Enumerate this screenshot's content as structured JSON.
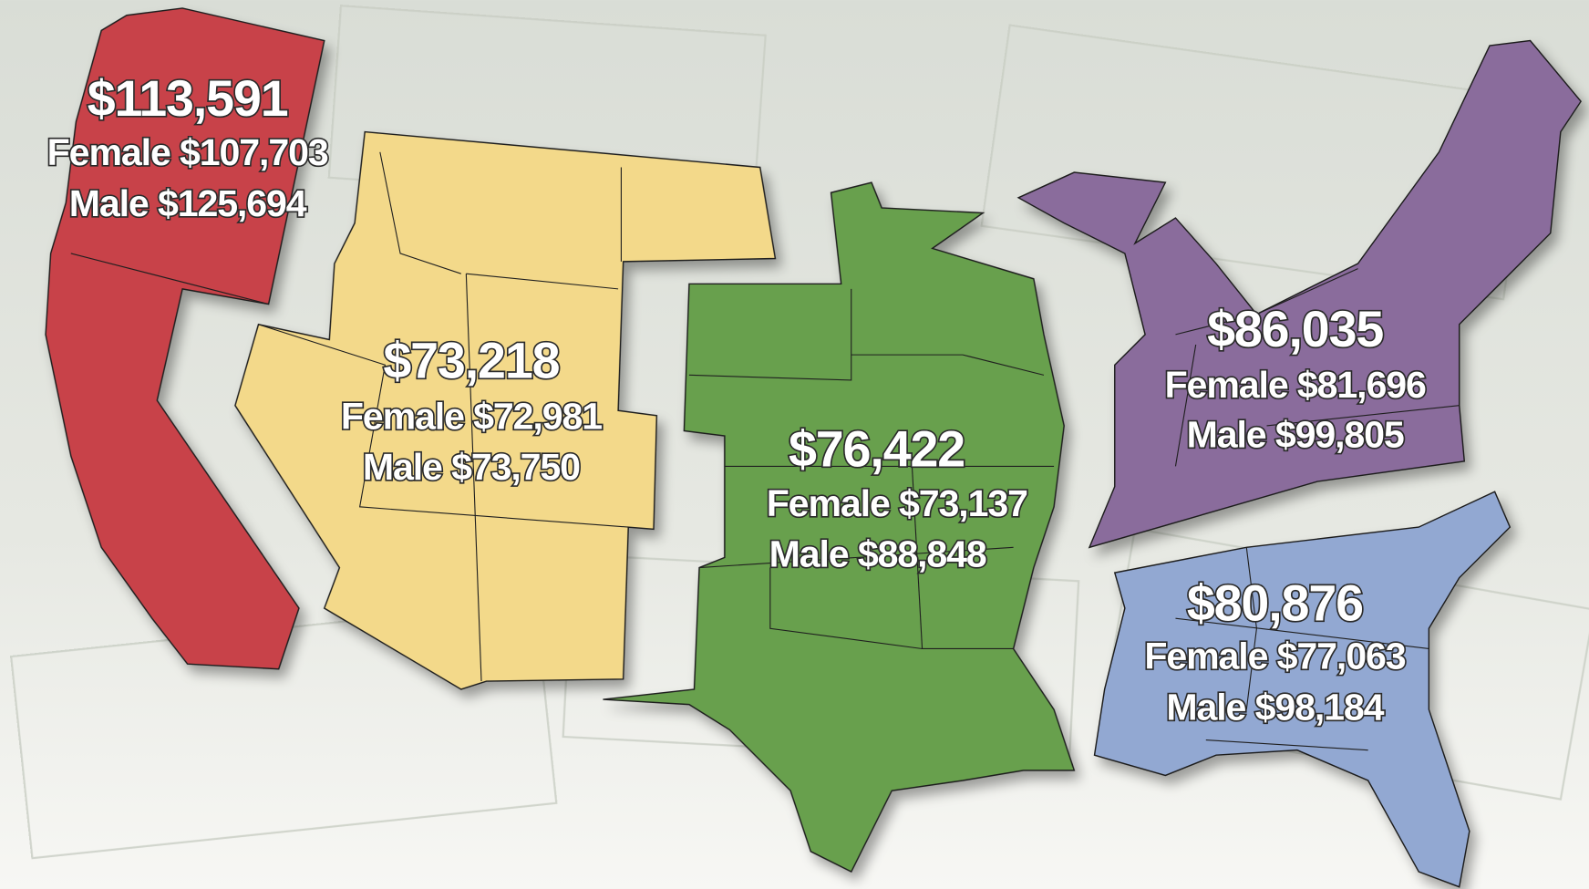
{
  "colors": {
    "background": "#e9ebe6",
    "west_coast": "#c8434a",
    "mountain": "#f3d98a",
    "central": "#67a04e",
    "northeast": "#8a6c9c",
    "southeast": "#92a8d2"
  },
  "regions": [
    {
      "id": "west-coast",
      "total": "$113,591",
      "female": "Female $107,703",
      "male": "Male $125,694"
    },
    {
      "id": "mountain",
      "total": "$73,218",
      "female": "Female $72,981",
      "male": "Male $73,750"
    },
    {
      "id": "central",
      "total": "$76,422",
      "female": "Female $73,137",
      "male": "Male $88,848"
    },
    {
      "id": "northeast",
      "total": "$86,035",
      "female": "Female $81,696",
      "male": "Male $99,805"
    },
    {
      "id": "southeast",
      "total": "$80,876",
      "female": "Female $77,063",
      "male": "Male $98,184"
    }
  ]
}
